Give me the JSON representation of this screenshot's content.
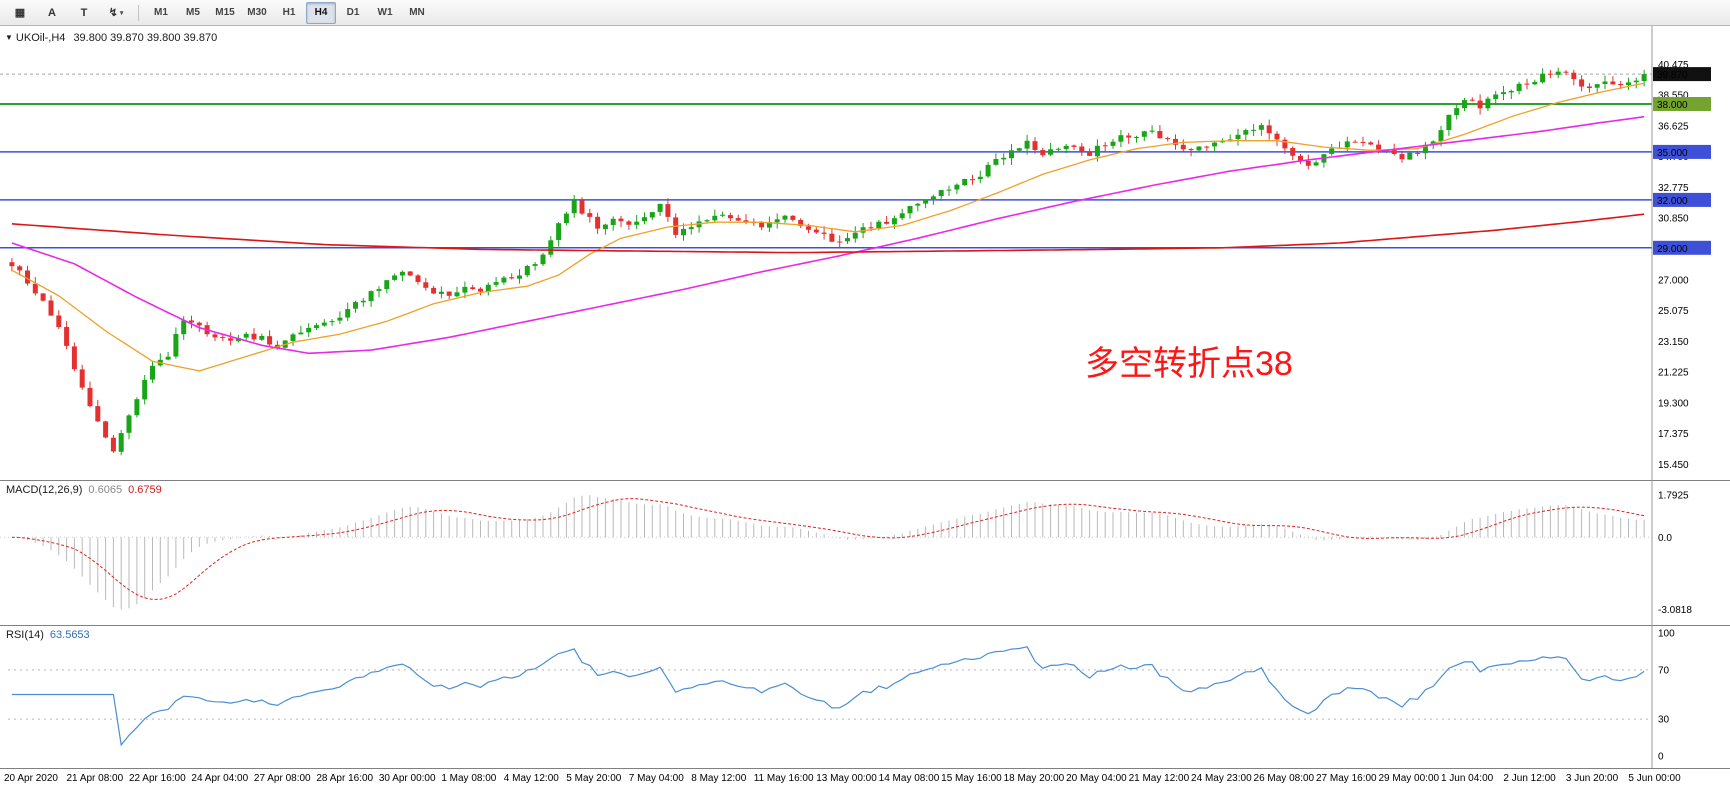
{
  "toolbar": {
    "tools": [
      {
        "name": "charts-grid-icon",
        "glyph": "▦"
      },
      {
        "name": "cursor-tool",
        "glyph": "A"
      },
      {
        "name": "text-tool",
        "glyph": "T"
      },
      {
        "name": "indicators-tool",
        "glyph": "↯",
        "caret": "▾"
      }
    ],
    "timeframes": [
      "M1",
      "M5",
      "M15",
      "M30",
      "H1",
      "H4",
      "D1",
      "W1",
      "MN"
    ],
    "active_timeframe": "H4"
  },
  "chart": {
    "header": {
      "collapse": "▼",
      "symbol": "UKOil-,H4",
      "ohlc": "39.800 39.870 39.800 39.870"
    },
    "annotation": {
      "text": "多空转折点38",
      "color": "#FE1515"
    },
    "price_axis": {
      "labels": [
        "40.475",
        "38.550",
        "36.625",
        "34.700",
        "32.775",
        "30.850",
        "27.000",
        "25.075",
        "23.150",
        "21.225",
        "19.300",
        "17.375",
        "15.450"
      ],
      "badges": [
        {
          "text": "39.870",
          "price": 39.87,
          "bg": "#111111"
        },
        {
          "text": "38.000",
          "price": 38.0,
          "bg": "#74A32E"
        },
        {
          "text": "35.000",
          "price": 35.0,
          "bg": "#3E4FD8"
        },
        {
          "text": "32.000",
          "price": 32.0,
          "bg": "#3E4FD8"
        },
        {
          "text": "29.000",
          "price": 29.0,
          "bg": "#3E4FD8"
        }
      ]
    }
  },
  "macd": {
    "title": "MACD(12,26,9)",
    "main_value": "0.6065",
    "signal_value": "0.6759",
    "axis_labels": [
      "1.7925",
      "0.0",
      "-3.0818"
    ]
  },
  "rsi": {
    "title": "RSI(14)",
    "value": "63.5653",
    "axis_labels": [
      "100",
      "70",
      "30",
      "0"
    ]
  },
  "time_axis": {
    "labels": [
      "20 Apr 2020",
      "21 Apr 08:00",
      "22 Apr 16:00",
      "24 Apr 04:00",
      "27 Apr 08:00",
      "28 Apr 16:00",
      "30 Apr 00:00",
      "1 May 08:00",
      "4 May 12:00",
      "5 May 20:00",
      "7 May 04:00",
      "8 May 12:00",
      "11 May 16:00",
      "13 May 00:00",
      "14 May 08:00",
      "15 May 16:00",
      "18 May 20:00",
      "20 May 04:00",
      "21 May 12:00",
      "24 May 23:00",
      "26 May 08:00",
      "27 May 16:00",
      "29 May 00:00",
      "1 Jun 04:00",
      "2 Jun 12:00",
      "3 Jun 20:00",
      "5 Jun 00:00"
    ]
  },
  "chart_data": {
    "type": "candlestick",
    "symbol": "UKOil-",
    "timeframe": "H4",
    "bars": 210,
    "current_price": 39.87,
    "price_range": [
      15.0,
      41.0
    ],
    "noise": 0.38,
    "wick": 0.42,
    "up_color": "#18A518",
    "down_color": "#E53030",
    "close_path": [
      [
        0,
        28.0
      ],
      [
        2,
        26.8
      ],
      [
        4,
        25.6
      ],
      [
        6,
        24.0
      ],
      [
        8,
        21.5
      ],
      [
        10,
        19.0
      ],
      [
        12,
        17.2
      ],
      [
        13,
        16.3
      ],
      [
        14,
        17.5
      ],
      [
        16,
        19.5
      ],
      [
        18,
        21.8
      ],
      [
        20,
        22.3
      ],
      [
        22,
        24.6
      ],
      [
        24,
        24.0
      ],
      [
        27,
        23.2
      ],
      [
        30,
        23.6
      ],
      [
        32,
        23.3
      ],
      [
        34,
        22.9
      ],
      [
        36,
        23.6
      ],
      [
        38,
        23.9
      ],
      [
        40,
        24.2
      ],
      [
        43,
        25.1
      ],
      [
        46,
        26.2
      ],
      [
        48,
        26.9
      ],
      [
        50,
        27.5
      ],
      [
        52,
        26.9
      ],
      [
        54,
        26.2
      ],
      [
        56,
        26.1
      ],
      [
        58,
        26.7
      ],
      [
        60,
        26.4
      ],
      [
        62,
        26.8
      ],
      [
        64,
        27.1
      ],
      [
        66,
        27.7
      ],
      [
        68,
        28.6
      ],
      [
        70,
        30.6
      ],
      [
        72,
        32.0
      ],
      [
        73,
        31.2
      ],
      [
        75,
        30.3
      ],
      [
        77,
        30.9
      ],
      [
        79,
        30.4
      ],
      [
        81,
        30.9
      ],
      [
        83,
        31.7
      ],
      [
        85,
        29.9
      ],
      [
        88,
        30.6
      ],
      [
        91,
        31.1
      ],
      [
        94,
        30.6
      ],
      [
        96,
        30.3
      ],
      [
        98,
        30.8
      ],
      [
        100,
        30.9
      ],
      [
        102,
        30.1
      ],
      [
        104,
        29.7
      ],
      [
        106,
        29.2
      ],
      [
        108,
        29.9
      ],
      [
        110,
        30.3
      ],
      [
        112,
        30.6
      ],
      [
        114,
        31.3
      ],
      [
        116,
        31.9
      ],
      [
        118,
        32.3
      ],
      [
        120,
        32.7
      ],
      [
        122,
        33.2
      ],
      [
        124,
        33.6
      ],
      [
        126,
        34.4
      ],
      [
        128,
        35.1
      ],
      [
        130,
        35.6
      ],
      [
        132,
        34.9
      ],
      [
        134,
        35.2
      ],
      [
        136,
        35.4
      ],
      [
        138,
        34.9
      ],
      [
        140,
        35.5
      ],
      [
        142,
        35.9
      ],
      [
        144,
        36.1
      ],
      [
        146,
        36.4
      ],
      [
        148,
        35.7
      ],
      [
        150,
        35.3
      ],
      [
        152,
        35.2
      ],
      [
        154,
        35.6
      ],
      [
        156,
        35.9
      ],
      [
        158,
        36.2
      ],
      [
        160,
        36.5
      ],
      [
        162,
        35.7
      ],
      [
        164,
        34.7
      ],
      [
        166,
        34.2
      ],
      [
        168,
        34.8
      ],
      [
        170,
        35.3
      ],
      [
        172,
        35.7
      ],
      [
        174,
        35.4
      ],
      [
        176,
        35.1
      ],
      [
        178,
        34.7
      ],
      [
        180,
        35.1
      ],
      [
        182,
        35.5
      ],
      [
        184,
        37.5
      ],
      [
        186,
        38.3
      ],
      [
        188,
        37.9
      ],
      [
        190,
        38.4
      ],
      [
        192,
        38.9
      ],
      [
        194,
        39.3
      ],
      [
        196,
        39.8
      ],
      [
        198,
        40.1
      ],
      [
        200,
        39.5
      ],
      [
        202,
        39.0
      ],
      [
        204,
        39.4
      ],
      [
        206,
        39.2
      ],
      [
        208,
        39.6
      ],
      [
        209,
        39.87
      ]
    ],
    "moving_averages": [
      {
        "name": "fast-ma",
        "color": "#EFA028",
        "width": 1.3,
        "path": [
          [
            0,
            27.6
          ],
          [
            6,
            26.0
          ],
          [
            12,
            23.8
          ],
          [
            18,
            21.9
          ],
          [
            24,
            21.3
          ],
          [
            30,
            22.2
          ],
          [
            36,
            23.1
          ],
          [
            42,
            23.6
          ],
          [
            48,
            24.4
          ],
          [
            54,
            25.5
          ],
          [
            60,
            26.2
          ],
          [
            66,
            26.6
          ],
          [
            70,
            27.3
          ],
          [
            74,
            28.6
          ],
          [
            78,
            29.6
          ],
          [
            84,
            30.3
          ],
          [
            90,
            30.6
          ],
          [
            96,
            30.6
          ],
          [
            102,
            30.4
          ],
          [
            108,
            30.0
          ],
          [
            114,
            30.4
          ],
          [
            120,
            31.3
          ],
          [
            126,
            32.4
          ],
          [
            132,
            33.6
          ],
          [
            138,
            34.5
          ],
          [
            144,
            35.2
          ],
          [
            150,
            35.6
          ],
          [
            156,
            35.7
          ],
          [
            162,
            35.7
          ],
          [
            168,
            35.3
          ],
          [
            174,
            35.1
          ],
          [
            180,
            35.2
          ],
          [
            186,
            36.1
          ],
          [
            192,
            37.2
          ],
          [
            198,
            38.1
          ],
          [
            204,
            38.8
          ],
          [
            209,
            39.3
          ]
        ]
      },
      {
        "name": "mid-ma",
        "color": "#E928E9",
        "width": 1.6,
        "path": [
          [
            0,
            29.3
          ],
          [
            8,
            28.0
          ],
          [
            16,
            25.9
          ],
          [
            24,
            24.0
          ],
          [
            32,
            22.9
          ],
          [
            38,
            22.4
          ],
          [
            46,
            22.6
          ],
          [
            56,
            23.4
          ],
          [
            66,
            24.4
          ],
          [
            76,
            25.4
          ],
          [
            86,
            26.4
          ],
          [
            96,
            27.5
          ],
          [
            106,
            28.5
          ],
          [
            116,
            29.6
          ],
          [
            126,
            30.8
          ],
          [
            136,
            31.9
          ],
          [
            146,
            32.9
          ],
          [
            156,
            33.8
          ],
          [
            166,
            34.5
          ],
          [
            176,
            35.1
          ],
          [
            186,
            35.7
          ],
          [
            196,
            36.3
          ],
          [
            203,
            36.8
          ],
          [
            209,
            37.2
          ]
        ]
      },
      {
        "name": "slow-ma",
        "color": "#DD1515",
        "width": 1.6,
        "path": [
          [
            0,
            30.5
          ],
          [
            20,
            29.8
          ],
          [
            40,
            29.2
          ],
          [
            60,
            28.9
          ],
          [
            80,
            28.8
          ],
          [
            100,
            28.7
          ],
          [
            120,
            28.8
          ],
          [
            140,
            28.9
          ],
          [
            155,
            29.0
          ],
          [
            170,
            29.3
          ],
          [
            180,
            29.7
          ],
          [
            190,
            30.1
          ],
          [
            200,
            30.6
          ],
          [
            209,
            31.1
          ]
        ]
      }
    ],
    "horizontal_levels": [
      {
        "price": 38.0,
        "color": "#2EA12E",
        "width": 2
      },
      {
        "price": 35.0,
        "color": "#3C50E0",
        "width": 1.5
      },
      {
        "price": 32.0,
        "color": "#3C50E0",
        "width": 1.5
      },
      {
        "price": 29.0,
        "color": "#3C50E0",
        "width": 1.5
      }
    ],
    "macd": {
      "fast": 12,
      "slow": 26,
      "signal": 9,
      "display_max": 1.7925,
      "display_min": -3.0818,
      "histogram_color": "#B9B9B9",
      "signal_color": "#D92525",
      "last_main": 0.6065,
      "last_signal": 0.6759
    },
    "rsi": {
      "period": 14,
      "color": "#4A8FD4",
      "levels": [
        70,
        30
      ],
      "last": 63.5653
    }
  }
}
